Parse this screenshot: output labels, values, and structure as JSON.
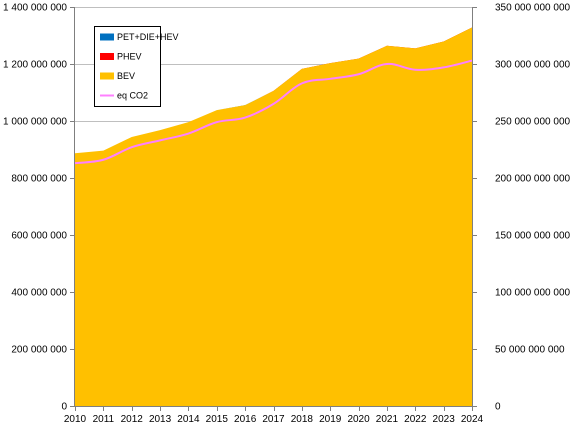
{
  "chart_data": {
    "type": "area",
    "title": "",
    "x": [
      "2010",
      "2011",
      "2012",
      "2013",
      "2014",
      "2015",
      "2016",
      "2017",
      "2018",
      "2019",
      "2020",
      "2021",
      "2022",
      "2023",
      "2024"
    ],
    "series": [
      {
        "name": "PET+DIE+HEV",
        "axis": "left",
        "stacked": true,
        "color": "#0070C0",
        "values": [
          887000000,
          896000000,
          944000000,
          968000000,
          996000000,
          1038000000,
          1055000000,
          1104000000,
          1180000000,
          1198000000,
          1212000000,
          1252000000,
          1235000000,
          1245000000,
          1277000000
        ]
      },
      {
        "name": "PHEV",
        "axis": "left",
        "stacked": true,
        "color": "#FF0000",
        "values": [
          0,
          0,
          0,
          0,
          0,
          0,
          500000,
          1000000,
          2000000,
          3000000,
          4000000,
          6000000,
          8000000,
          12000000,
          17000000
        ]
      },
      {
        "name": "BEV",
        "axis": "left",
        "stacked": true,
        "color": "#FFC000",
        "values": [
          0,
          0,
          0,
          0,
          0,
          0,
          0,
          500000,
          1000000,
          2000000,
          3000000,
          6000000,
          12000000,
          22000000,
          34000000
        ]
      },
      {
        "name": "eq CO2",
        "axis": "right",
        "type": "line",
        "color": "#FF80FF",
        "values": [
          213000000000,
          216000000000,
          227000000000,
          233000000000,
          239000000000,
          249000000000,
          253000000000,
          265000000000,
          283000000000,
          287000000000,
          291000000000,
          300000000000,
          295000000000,
          297000000000,
          303000000000
        ]
      }
    ],
    "y_left": {
      "min": 0,
      "max": 1400000000,
      "step": 200000000,
      "tick_labels": [
        "0",
        "200 000 000",
        "400 000 000",
        "600 000 000",
        "800 000 000",
        "1 000 000 000",
        "1 200 000 000",
        "1 400 000 000"
      ]
    },
    "y_right": {
      "min": 0,
      "max": 350000000000,
      "step": 50000000000,
      "tick_labels": [
        "0",
        "50 000 000 000",
        "100 000 000 000",
        "150 000 000 000",
        "200 000 000 000",
        "250 000 000 000",
        "300 000 000 000",
        "350 000 000 000"
      ]
    },
    "grid": true,
    "legend_position": "top-left",
    "legend_order": [
      "PET+DIE+HEV",
      "PHEV",
      "BEV",
      "eq CO2"
    ]
  }
}
